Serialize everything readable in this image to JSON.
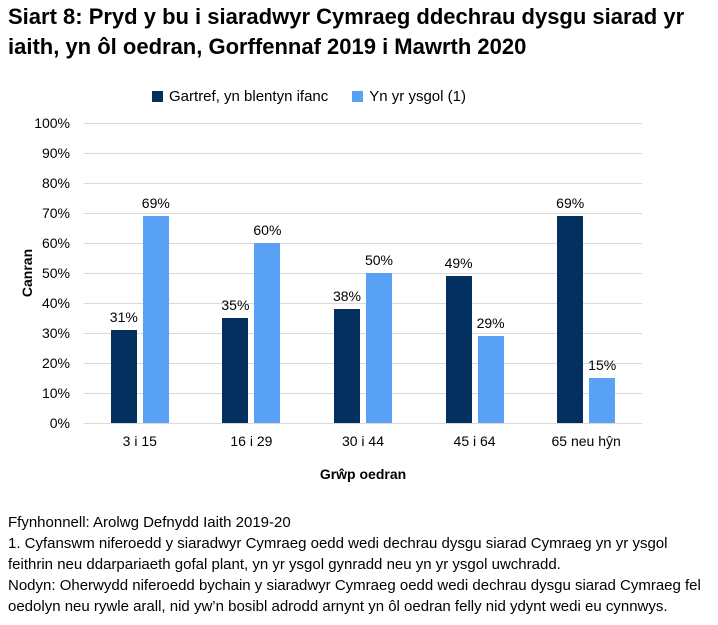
{
  "chart_data": {
    "type": "bar",
    "title": "Siart 8: Pryd y bu i siaradwyr Cymraeg ddechrau dysgu siarad yr iaith, yn ôl oedran, Gorffennaf 2019 i Mawrth 2020",
    "categories": [
      "3 i 15",
      "16 i 29",
      "30 i 44",
      "45 i 64",
      "65 neu hŷn"
    ],
    "series": [
      {
        "name": "Gartref, yn blentyn ifanc",
        "color": "#03305e",
        "values": [
          31,
          35,
          38,
          49,
          69
        ]
      },
      {
        "name": "Yn yr ysgol (1)",
        "color": "#59a1f4",
        "values": [
          69,
          60,
          50,
          29,
          15
        ]
      }
    ],
    "xlabel": "Grŵp oedran",
    "ylabel": "Canran",
    "ylim": [
      0,
      100
    ],
    "ytick_step": 10,
    "ytick_suffix": "%",
    "value_suffix": "%",
    "grid": true,
    "gridline_color": "#d9d9d9",
    "legend_position": "top"
  },
  "footnotes": [
    "Ffynhonnell: Arolwg Defnydd Iaith 2019-20",
    "1. Cyfanswm niferoedd y siaradwyr Cymraeg oedd wedi dechrau dysgu siarad Cymraeg yn yr ysgol feithrin neu ddarpariaeth gofal plant, yn yr ysgol gynradd neu yn yr ysgol uwchradd.",
    "Nodyn: Oherwydd niferoedd bychain y siaradwyr Cymraeg oedd wedi dechrau dysgu siarad Cymraeg fel oedolyn neu rywle arall, nid yw’n bosibl adrodd arnynt yn ôl oedran felly nid ydynt wedi eu cynnwys."
  ]
}
